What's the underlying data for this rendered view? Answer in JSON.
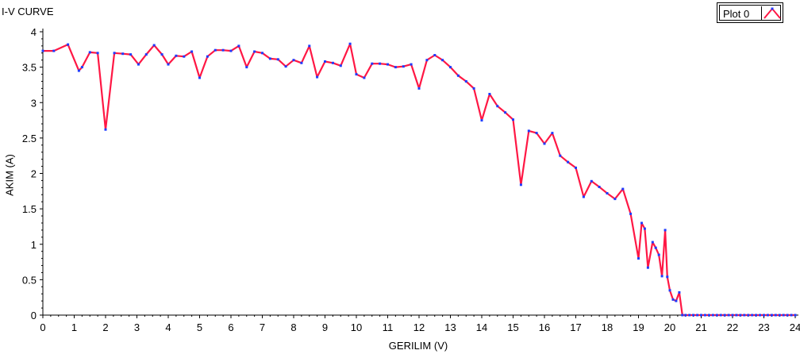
{
  "chart_data": {
    "type": "line",
    "title": "I-V CURVE",
    "xlabel": "GERILIM (V)",
    "ylabel": "AKIM (A)",
    "xlim": [
      0,
      24
    ],
    "ylim": [
      0,
      4
    ],
    "xticks": [
      "0",
      "1",
      "2",
      "3",
      "4",
      "5",
      "6",
      "7",
      "8",
      "9",
      "10",
      "11",
      "12",
      "13",
      "14",
      "15",
      "16",
      "17",
      "18",
      "19",
      "20",
      "21",
      "22",
      "23",
      "24"
    ],
    "yticks": [
      "0",
      "0.5",
      "1",
      "1.5",
      "2",
      "2.5",
      "3",
      "3.5",
      "4"
    ],
    "grid": false,
    "legend_position": "top-right",
    "series": [
      {
        "name": "Plot 0",
        "line_color": "#ff1744",
        "marker_color": "#1f3cff",
        "x": [
          0.0,
          0.35,
          0.8,
          1.15,
          1.25,
          1.5,
          1.75,
          2.0,
          2.28,
          2.55,
          2.8,
          3.05,
          3.3,
          3.55,
          3.8,
          4.0,
          4.25,
          4.5,
          4.75,
          5.0,
          5.25,
          5.5,
          5.75,
          6.0,
          6.25,
          6.5,
          6.75,
          7.0,
          7.25,
          7.5,
          7.75,
          8.0,
          8.25,
          8.5,
          8.75,
          9.0,
          9.25,
          9.5,
          9.8,
          10.0,
          10.25,
          10.5,
          10.75,
          11.0,
          11.25,
          11.5,
          11.75,
          12.0,
          12.25,
          12.5,
          12.75,
          13.0,
          13.25,
          13.5,
          13.75,
          14.0,
          14.25,
          14.5,
          14.75,
          15.0,
          15.25,
          15.5,
          15.75,
          16.0,
          16.25,
          16.5,
          16.75,
          17.0,
          17.25,
          17.5,
          17.75,
          18.0,
          18.25,
          18.5,
          18.75,
          19.0,
          19.1,
          19.2,
          19.3,
          19.45,
          19.55,
          19.65,
          19.75,
          19.85,
          19.92,
          20.0,
          20.1,
          20.2,
          20.3,
          20.4,
          20.5,
          21.0,
          21.5,
          22.0,
          22.5,
          23.0,
          23.5,
          24.0
        ],
        "y": [
          3.73,
          3.73,
          3.82,
          3.45,
          3.5,
          3.71,
          3.7,
          2.62,
          3.7,
          3.69,
          3.68,
          3.54,
          3.68,
          3.81,
          3.68,
          3.54,
          3.66,
          3.65,
          3.72,
          3.35,
          3.65,
          3.74,
          3.74,
          3.73,
          3.8,
          3.5,
          3.72,
          3.7,
          3.62,
          3.61,
          3.51,
          3.6,
          3.56,
          3.8,
          3.36,
          3.58,
          3.56,
          3.52,
          3.83,
          3.4,
          3.35,
          3.55,
          3.55,
          3.54,
          3.5,
          3.51,
          3.54,
          3.2,
          3.6,
          3.67,
          3.6,
          3.5,
          3.38,
          3.3,
          3.2,
          2.75,
          3.12,
          2.95,
          2.86,
          2.76,
          1.84,
          2.6,
          2.57,
          2.42,
          2.57,
          2.25,
          2.16,
          2.08,
          1.67,
          1.89,
          1.81,
          1.72,
          1.64,
          1.78,
          1.43,
          0.8,
          1.3,
          1.22,
          0.67,
          1.03,
          0.95,
          0.85,
          0.55,
          1.2,
          0.54,
          0.35,
          0.22,
          0.2,
          0.32,
          0.0,
          0.0,
          0.0,
          0.0,
          0.0,
          0.0,
          0.0,
          0.0,
          0.0
        ]
      }
    ]
  }
}
